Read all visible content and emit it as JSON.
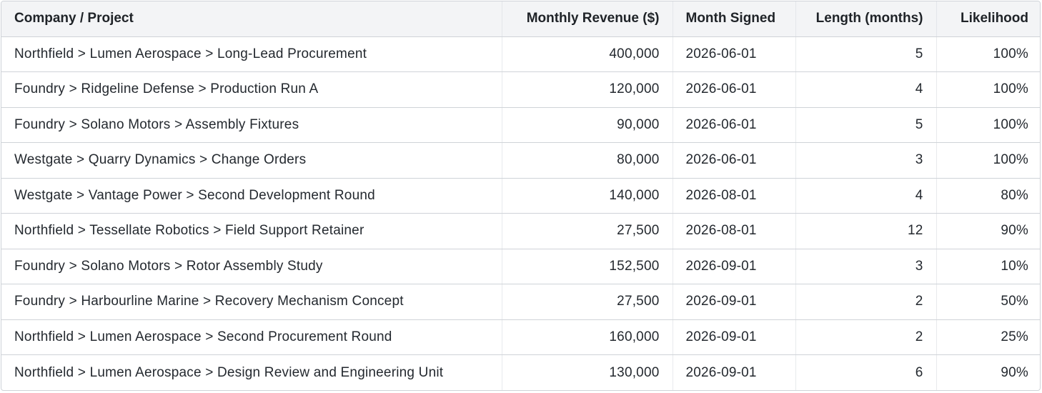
{
  "table": {
    "headers": [
      {
        "key": "project",
        "label": "Company / Project"
      },
      {
        "key": "revenue",
        "label": "Monthly Revenue ($)"
      },
      {
        "key": "signed",
        "label": "Month Signed"
      },
      {
        "key": "length",
        "label": "Length (months)"
      },
      {
        "key": "likelihood",
        "label": "Likelihood"
      }
    ],
    "rows": [
      {
        "project": "Northfield > Lumen Aerospace > Long-Lead Procurement",
        "revenue": "400,000",
        "signed": "2026-06-01",
        "length": "5",
        "likelihood": "100%"
      },
      {
        "project": "Foundry > Ridgeline Defense > Production Run A",
        "revenue": "120,000",
        "signed": "2026-06-01",
        "length": "4",
        "likelihood": "100%"
      },
      {
        "project": "Foundry > Solano Motors > Assembly Fixtures",
        "revenue": "90,000",
        "signed": "2026-06-01",
        "length": "5",
        "likelihood": "100%"
      },
      {
        "project": "Westgate > Quarry Dynamics > Change Orders",
        "revenue": "80,000",
        "signed": "2026-06-01",
        "length": "3",
        "likelihood": "100%"
      },
      {
        "project": "Westgate > Vantage Power > Second Development Round",
        "revenue": "140,000",
        "signed": "2026-08-01",
        "length": "4",
        "likelihood": "80%"
      },
      {
        "project": "Northfield > Tessellate Robotics > Field Support Retainer",
        "revenue": "27,500",
        "signed": "2026-08-01",
        "length": "12",
        "likelihood": "90%"
      },
      {
        "project": "Foundry > Solano Motors > Rotor Assembly Study",
        "revenue": "152,500",
        "signed": "2026-09-01",
        "length": "3",
        "likelihood": "10%"
      },
      {
        "project": "Foundry > Harbourline Marine > Recovery Mechanism Concept",
        "revenue": "27,500",
        "signed": "2026-09-01",
        "length": "2",
        "likelihood": "50%"
      },
      {
        "project": "Northfield > Lumen Aerospace > Second Procurement Round",
        "revenue": "160,000",
        "signed": "2026-09-01",
        "length": "2",
        "likelihood": "25%"
      },
      {
        "project": "Northfield > Lumen Aerospace > Design Review and Engineering Unit",
        "revenue": "130,000",
        "signed": "2026-09-01",
        "length": "6",
        "likelihood": "90%"
      }
    ]
  }
}
